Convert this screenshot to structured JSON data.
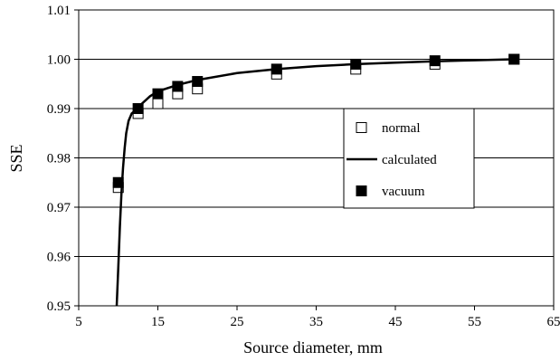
{
  "chart_data": {
    "type": "line",
    "xlabel": "Source diameter, mm",
    "ylabel": "SSE",
    "xlim": [
      5,
      65
    ],
    "ylim": [
      0.95,
      1.01
    ],
    "x_ticks": [
      "5",
      "15",
      "25",
      "35",
      "45",
      "55",
      "65"
    ],
    "y_ticks": [
      "0.95",
      "0.96",
      "0.97",
      "0.98",
      "0.99",
      "1.00",
      "1.01"
    ],
    "grid": "horizontal",
    "legend_position": "right",
    "series": [
      {
        "name": "normal",
        "marker": "open-square",
        "color": "#000000",
        "x": [
          10,
          12.5,
          15,
          17.5,
          20,
          30,
          40,
          50,
          60
        ],
        "y": [
          0.974,
          0.989,
          0.991,
          0.993,
          0.994,
          0.997,
          0.998,
          0.999,
          1.0
        ]
      },
      {
        "name": "calculated",
        "marker": "none",
        "color": "#000000",
        "x": [
          9.8,
          10.0,
          10.2,
          10.4,
          10.6,
          10.8,
          11.0,
          11.3,
          11.7,
          12.2,
          12.5,
          13.0,
          14.0,
          15.0,
          17.5,
          20.0,
          25.0,
          30.0,
          35.0,
          40.0,
          45.0,
          50.0,
          55.0,
          60.0
        ],
        "y": [
          0.95,
          0.958,
          0.966,
          0.973,
          0.978,
          0.982,
          0.985,
          0.9875,
          0.989,
          0.9897,
          0.99,
          0.991,
          0.9925,
          0.9935,
          0.9948,
          0.9958,
          0.9972,
          0.998,
          0.9986,
          0.999,
          0.9993,
          0.9996,
          0.9998,
          1.0
        ]
      },
      {
        "name": "vacuum",
        "marker": "filled-square",
        "color": "#000000",
        "x": [
          10,
          12.5,
          15,
          17.5,
          20,
          30,
          40,
          50,
          60
        ],
        "y": [
          0.975,
          0.99,
          0.993,
          0.9945,
          0.9955,
          0.998,
          0.999,
          0.9997,
          1.0
        ]
      }
    ]
  }
}
